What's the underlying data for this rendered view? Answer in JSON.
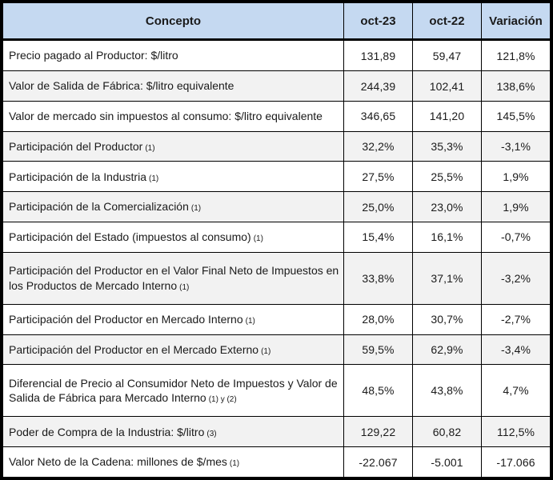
{
  "chart_data": {
    "type": "table",
    "title": "",
    "columns": [
      "Concepto",
      "oct-23",
      "oct-22",
      "Variación"
    ],
    "rows": [
      {
        "concepto": "Precio pagado al Productor: $/litro",
        "note": "",
        "oct23": "131,89",
        "oct22": "59,47",
        "variacion": "121,8%"
      },
      {
        "concepto": "Valor de Salida de Fábrica: $/litro equivalente",
        "note": "",
        "oct23": "244,39",
        "oct22": "102,41",
        "variacion": "138,6%"
      },
      {
        "concepto": "Valor de mercado sin impuestos al consumo: $/litro equivalente",
        "note": "",
        "oct23": "346,65",
        "oct22": "141,20",
        "variacion": "145,5%"
      },
      {
        "concepto": "Participación del Productor",
        "note": "(1)",
        "oct23": "32,2%",
        "oct22": "35,3%",
        "variacion": "-3,1%"
      },
      {
        "concepto": "Participación de la Industria",
        "note": "(1)",
        "oct23": "27,5%",
        "oct22": "25,5%",
        "variacion": "1,9%"
      },
      {
        "concepto": "Participación de la Comercialización",
        "note": "(1)",
        "oct23": "25,0%",
        "oct22": "23,0%",
        "variacion": "1,9%"
      },
      {
        "concepto": "Participación del Estado (impuestos al consumo)",
        "note": "(1)",
        "oct23": "15,4%",
        "oct22": "16,1%",
        "variacion": "-0,7%"
      },
      {
        "concepto": "Participación del Productor en el Valor Final Neto de Impuestos en los Productos de Mercado Interno",
        "note": "(1)",
        "oct23": "33,8%",
        "oct22": "37,1%",
        "variacion": "-3,2%"
      },
      {
        "concepto": "Participación del Productor en Mercado Interno",
        "note": "(1)",
        "oct23": "28,0%",
        "oct22": "30,7%",
        "variacion": "-2,7%"
      },
      {
        "concepto": "Participación del Productor en el Mercado Externo",
        "note": "(1)",
        "oct23": "59,5%",
        "oct22": "62,9%",
        "variacion": "-3,4%"
      },
      {
        "concepto": "Diferencial de Precio al Consumidor Neto de Impuestos y Valor de Salida de Fábrica para Mercado Interno",
        "note": "(1) y (2)",
        "oct23": "48,5%",
        "oct22": "43,8%",
        "variacion": "4,7%"
      },
      {
        "concepto": "Poder de Compra de la Industria: $/litro",
        "note": "(3)",
        "oct23": "129,22",
        "oct22": "60,82",
        "variacion": "112,5%"
      },
      {
        "concepto": "Valor Neto de la Cadena: millones de $/mes",
        "note": "(1)",
        "oct23": "-22.067",
        "oct22": "-5.001",
        "variacion": "-17.066"
      }
    ],
    "layout": {
      "legend": "none",
      "grid": "all-borders",
      "header_row": "bold-centered-blue",
      "zebra_striping": "odd-white-even-gray"
    }
  },
  "colors": {
    "header_bg": "#c5d9f1",
    "row_bg": "#ffffff",
    "row_alt_bg": "#f2f2f2",
    "border": "#000000",
    "text": "#1a1a1a"
  }
}
